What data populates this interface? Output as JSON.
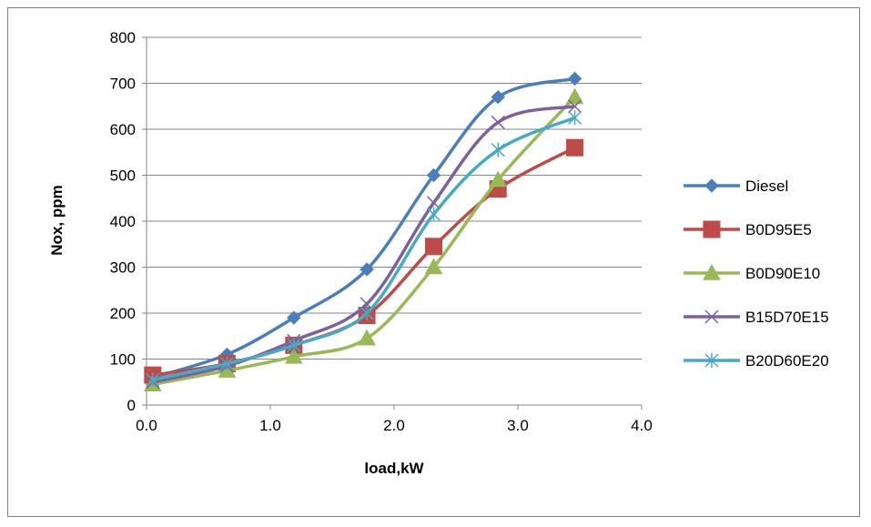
{
  "chart_data": {
    "type": "line",
    "title": "",
    "xlabel": "load,kW",
    "ylabel": "Nox, ppm",
    "xlim": [
      0,
      4
    ],
    "ylim": [
      0,
      800
    ],
    "xticks": [
      "0.0",
      "1.0",
      "2.0",
      "3.0",
      "4.0"
    ],
    "yticks": [
      "0",
      "100",
      "200",
      "300",
      "400",
      "500",
      "600",
      "700",
      "800"
    ],
    "grid": "horizontal",
    "legend_position": "right",
    "smooth": true,
    "x": [
      0.05,
      0.65,
      1.19,
      1.78,
      2.32,
      2.84,
      3.46
    ],
    "series": [
      {
        "name": "Diesel",
        "color": "#4A7EBB",
        "marker": "diamond",
        "values": [
          60,
          110,
          190,
          295,
          500,
          670,
          710
        ]
      },
      {
        "name": "B0D95E5",
        "color": "#BE4B48",
        "marker": "square",
        "values": [
          65,
          90,
          130,
          195,
          345,
          470,
          560
        ]
      },
      {
        "name": "B0D90E10",
        "color": "#98B954",
        "marker": "triangle",
        "values": [
          45,
          75,
          105,
          145,
          300,
          490,
          670
        ]
      },
      {
        "name": "B15D70E15",
        "color": "#7D60A0",
        "marker": "x",
        "values": [
          50,
          85,
          140,
          220,
          440,
          615,
          650
        ]
      },
      {
        "name": "B20D60E20",
        "color": "#46AAC5",
        "marker": "star",
        "values": [
          55,
          90,
          130,
          200,
          415,
          555,
          625
        ]
      }
    ]
  }
}
